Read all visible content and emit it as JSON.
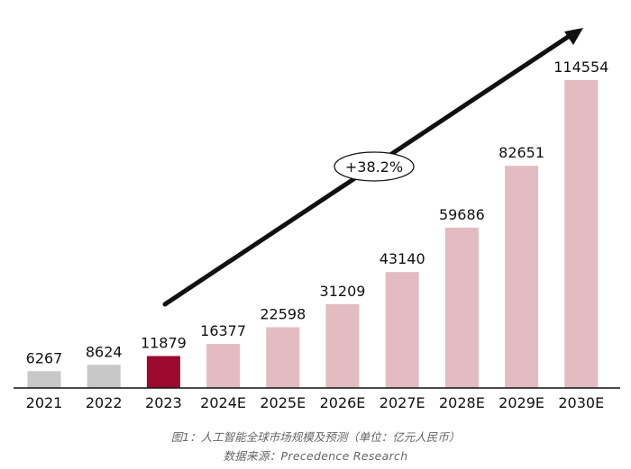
{
  "chart_data": {
    "type": "bar",
    "title": "",
    "xlabel": "",
    "ylabel": "",
    "categories": [
      "2021",
      "2022",
      "2023",
      "2024E",
      "2025E",
      "2026E",
      "2027E",
      "2028E",
      "2029E",
      "2030E"
    ],
    "values": [
      6267,
      8624,
      11879,
      16377,
      22598,
      31209,
      43140,
      59686,
      82651,
      114554
    ],
    "bar_colors": [
      "#c8c8c8",
      "#c8c8c8",
      "#9b0a2e",
      "#e2bcc1",
      "#e2bcc1",
      "#e2bcc1",
      "#e2bcc1",
      "#e2bcc1",
      "#e2bcc1",
      "#e2bcc1"
    ],
    "annotation": "+38.2%",
    "ylim": [
      0,
      114554
    ],
    "grid": false,
    "legend": "none"
  },
  "captions": {
    "figure": "图1：人工智能全球市场规模及预测（单位：亿元人民币）",
    "source": "数据来源：Precedence Research"
  }
}
